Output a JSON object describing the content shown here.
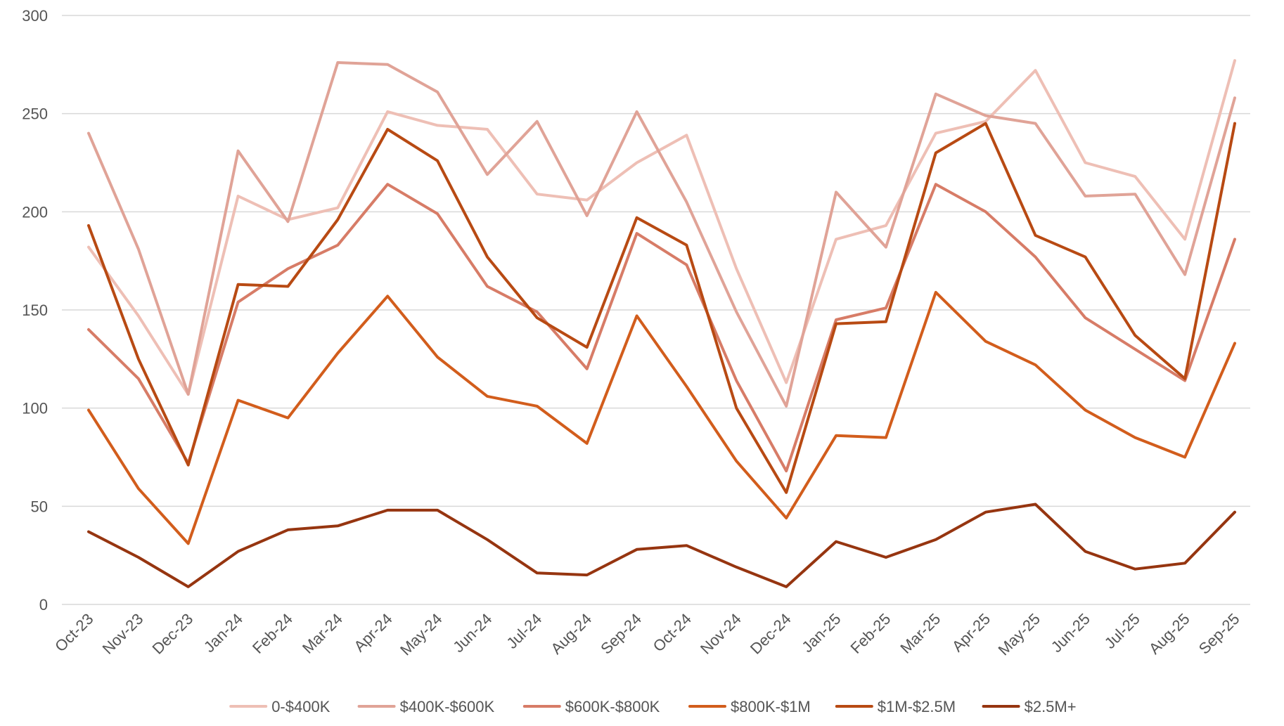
{
  "chart_data": {
    "type": "line",
    "title": "",
    "xlabel": "",
    "ylabel": "",
    "ylim": [
      0,
      300
    ],
    "yticks": [
      0,
      50,
      100,
      150,
      200,
      250,
      300
    ],
    "grid": true,
    "legend_position": "bottom",
    "categories": [
      "Oct-23",
      "Nov-23",
      "Dec-23",
      "Jan-24",
      "Feb-24",
      "Mar-24",
      "Apr-24",
      "May-24",
      "Jun-24",
      "Jul-24",
      "Aug-24",
      "Sep-24",
      "Oct-24",
      "Nov-24",
      "Dec-24",
      "Jan-25",
      "Feb-25",
      "Mar-25",
      "Apr-25",
      "May-25",
      "Jun-25",
      "Jul-25",
      "Aug-25",
      "Sep-25"
    ],
    "series": [
      {
        "name": "0-$400K",
        "color": "#eebfb5",
        "values": [
          182,
          147,
          107,
          208,
          196,
          202,
          251,
          244,
          242,
          209,
          206,
          225,
          239,
          171,
          113,
          186,
          193,
          240,
          246,
          272,
          225,
          218,
          186,
          277
        ]
      },
      {
        "name": "$400K-$600K",
        "color": "#e0a397",
        "values": [
          240,
          181,
          107,
          231,
          195,
          276,
          275,
          261,
          219,
          246,
          198,
          251,
          205,
          149,
          101,
          210,
          182,
          260,
          249,
          245,
          208,
          209,
          168,
          258
        ]
      },
      {
        "name": "$600K-$800K",
        "color": "#d77c67",
        "values": [
          140,
          115,
          72,
          154,
          171,
          183,
          214,
          199,
          162,
          149,
          120,
          189,
          173,
          114,
          68,
          145,
          151,
          214,
          200,
          177,
          146,
          130,
          114,
          186
        ]
      },
      {
        "name": "$800K-$1M",
        "color": "#d25d1c",
        "values": [
          99,
          59,
          31,
          104,
          95,
          128,
          157,
          126,
          106,
          101,
          82,
          147,
          111,
          73,
          44,
          86,
          85,
          159,
          134,
          122,
          99,
          85,
          75,
          133
        ]
      },
      {
        "name": "$1M-$2.5M",
        "color": "#b84a13",
        "values": [
          193,
          125,
          71,
          163,
          162,
          196,
          242,
          226,
          177,
          146,
          131,
          197,
          183,
          100,
          57,
          143,
          144,
          230,
          245,
          188,
          177,
          137,
          115,
          245
        ]
      },
      {
        "name": "$2.5M+",
        "color": "#963510",
        "values": [
          37,
          24,
          9,
          27,
          38,
          40,
          48,
          48,
          33,
          16,
          15,
          28,
          30,
          19,
          9,
          32,
          24,
          33,
          47,
          51,
          27,
          18,
          21,
          47
        ]
      }
    ]
  }
}
